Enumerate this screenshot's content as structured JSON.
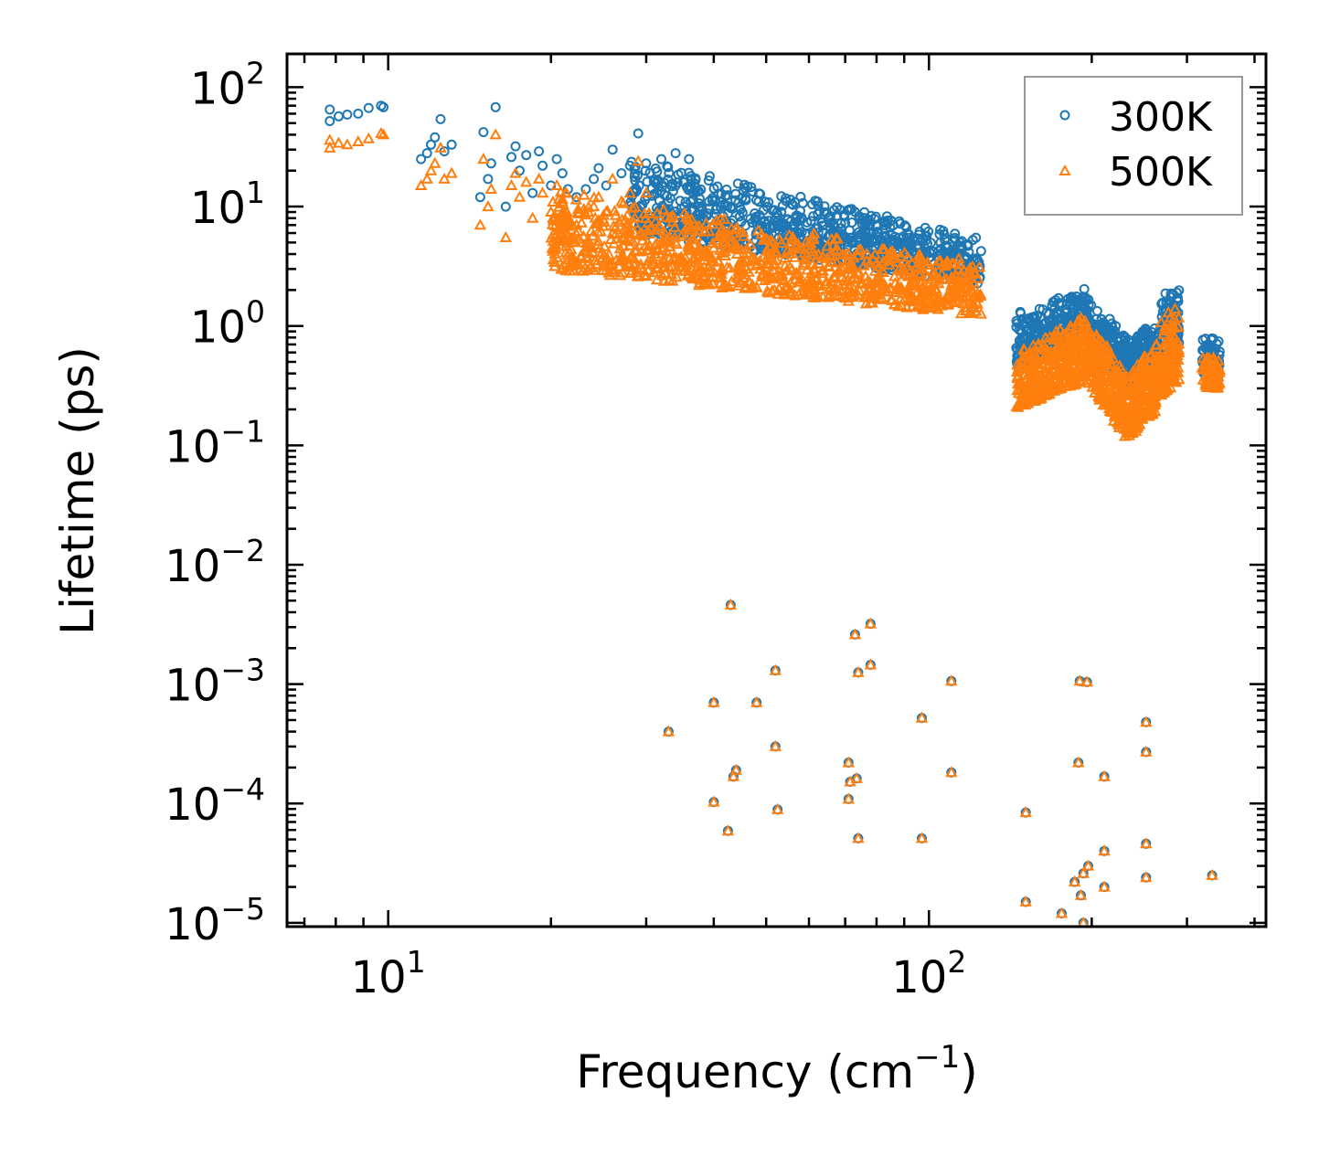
{
  "chart_data": {
    "type": "scatter",
    "xscale": "log",
    "yscale": "log",
    "xlabel": "Frequency (cm",
    "xlabel_sup": "−1",
    "xlabel_end": ")",
    "ylabel": "Lifetime (ps)",
    "xlim": [
      6.5,
      420
    ],
    "ylim": [
      9.3e-06,
      190
    ],
    "xticks": [
      {
        "value": 10,
        "base": "10",
        "exp": "1"
      },
      {
        "value": 100,
        "base": "10",
        "exp": "2"
      }
    ],
    "yticks": [
      {
        "value": 100,
        "base": "10",
        "exp": "2"
      },
      {
        "value": 10,
        "base": "10",
        "exp": "1"
      },
      {
        "value": 1,
        "base": "10",
        "exp": "0"
      },
      {
        "value": 0.1,
        "base": "10",
        "exp": "−1"
      },
      {
        "value": 0.01,
        "base": "10",
        "exp": "−2"
      },
      {
        "value": 0.001,
        "base": "10",
        "exp": "−3"
      },
      {
        "value": 0.0001,
        "base": "10",
        "exp": "−4"
      },
      {
        "value": 1e-05,
        "base": "10",
        "exp": "−5"
      }
    ],
    "legend": {
      "position": "top-right",
      "entries": [
        "300K",
        "500K"
      ]
    },
    "colors": {
      "300K": "#1f77b4",
      "500K": "#ff7f0e"
    },
    "series": [
      {
        "name": "300K",
        "marker": "circle",
        "points": [
          [
            7.8,
            65
          ],
          [
            7.8,
            52
          ],
          [
            8.1,
            57
          ],
          [
            8.4,
            59
          ],
          [
            8.8,
            60
          ],
          [
            9.2,
            67
          ],
          [
            9.7,
            70
          ],
          [
            9.8,
            68
          ],
          [
            11.5,
            25
          ],
          [
            11.8,
            28
          ],
          [
            12.0,
            33
          ],
          [
            12.2,
            38
          ],
          [
            12.5,
            54
          ],
          [
            12.7,
            29
          ],
          [
            13.1,
            33
          ],
          [
            14.8,
            12
          ],
          [
            15.0,
            42
          ],
          [
            15.3,
            17
          ],
          [
            15.5,
            23
          ],
          [
            15.8,
            68
          ],
          [
            16.5,
            10
          ],
          [
            16.9,
            26
          ],
          [
            17.2,
            32
          ],
          [
            17.5,
            20
          ],
          [
            18.0,
            27
          ],
          [
            18.5,
            13
          ],
          [
            19.0,
            29
          ],
          [
            19.3,
            22
          ],
          [
            20.0,
            15
          ],
          [
            20.5,
            25
          ],
          [
            21.0,
            19
          ],
          [
            21.5,
            14
          ],
          [
            22.3,
            12
          ],
          [
            23.2,
            14
          ],
          [
            24.0,
            17
          ],
          [
            24.5,
            21
          ],
          [
            25.3,
            15
          ],
          [
            26.0,
            30
          ],
          [
            27.0,
            19
          ],
          [
            28.0,
            22
          ],
          [
            29.0,
            41
          ],
          [
            30.0,
            23
          ],
          [
            32.0,
            25
          ],
          [
            34.0,
            28
          ],
          [
            36.0,
            25
          ],
          [
            43.0,
            0.0046
          ],
          [
            78.0,
            0.0032
          ],
          [
            73.0,
            0.0026
          ],
          [
            52.0,
            0.0013
          ],
          [
            74.0,
            0.00125
          ],
          [
            78.0,
            0.00145
          ],
          [
            110.0,
            0.00106
          ],
          [
            190.0,
            0.00106
          ],
          [
            196.0,
            0.00104
          ],
          [
            40.0,
            0.0007
          ],
          [
            48.0,
            0.0007
          ],
          [
            97.0,
            0.00052
          ],
          [
            33.0,
            0.0004
          ],
          [
            252.0,
            0.00048
          ],
          [
            52.0,
            0.0003
          ],
          [
            252.0,
            0.00027
          ],
          [
            71.0,
            0.00022
          ],
          [
            189.0,
            0.00022
          ],
          [
            44.0,
            0.00019
          ],
          [
            43.5,
            0.000168
          ],
          [
            71.5,
            0.000152
          ],
          [
            73.5,
            0.000162
          ],
          [
            110.0,
            0.000182
          ],
          [
            211.0,
            0.000168
          ],
          [
            40.0,
            0.000103
          ],
          [
            71.0,
            0.000109
          ],
          [
            52.5,
            8.9e-05
          ],
          [
            151.0,
            8.4e-05
          ],
          [
            42.5,
            5.9e-05
          ],
          [
            74.0,
            5.1e-05
          ],
          [
            97.0,
            5.1e-05
          ],
          [
            252.0,
            4.6e-05
          ],
          [
            211.0,
            4e-05
          ],
          [
            197.0,
            3e-05
          ],
          [
            193.0,
            2.6e-05
          ],
          [
            186.0,
            2.2e-05
          ],
          [
            252.0,
            2.4e-05
          ],
          [
            334.0,
            2.5e-05
          ],
          [
            211.0,
            2e-05
          ],
          [
            191.0,
            1.7e-05
          ],
          [
            151.0,
            1.5e-05
          ],
          [
            176.0,
            1.2e-05
          ],
          [
            193.0,
            1e-05
          ]
        ],
        "clusters": [
          {
            "x": [
              28,
              125
            ],
            "y": [
              [
                6,
                26
              ],
              [
                2.2,
                5.5
              ]
            ],
            "n": 900
          },
          {
            "x": [
              145,
              195
            ],
            "y": [
              [
                0.4,
                1.3
              ],
              [
                0.8,
                2.1
              ]
            ],
            "n": 320
          },
          {
            "x": [
              195,
              232
            ],
            "y": [
              [
                0.8,
                2.0
              ],
              [
                0.25,
                0.8
              ]
            ],
            "n": 240
          },
          {
            "x": [
              232,
              265
            ],
            "y": [
              [
                0.25,
                0.8
              ],
              [
                0.5,
                1.1
              ]
            ],
            "n": 200
          },
          {
            "x": [
              268,
              290
            ],
            "y": [
              [
                0.4,
                1.8
              ],
              [
                0.6,
                2.4
              ]
            ],
            "n": 120
          },
          {
            "x": [
              320,
              345
            ],
            "y": [
              [
                0.4,
                0.9
              ],
              [
                0.35,
                0.8
              ]
            ],
            "n": 80
          }
        ]
      },
      {
        "name": "500K",
        "marker": "triangle",
        "points": [
          [
            7.8,
            36
          ],
          [
            7.8,
            31
          ],
          [
            8.1,
            34
          ],
          [
            8.4,
            33
          ],
          [
            8.8,
            35
          ],
          [
            9.2,
            37
          ],
          [
            9.7,
            41
          ],
          [
            9.8,
            40
          ],
          [
            11.5,
            15
          ],
          [
            11.8,
            17
          ],
          [
            12.0,
            20
          ],
          [
            12.2,
            23
          ],
          [
            12.5,
            31
          ],
          [
            12.7,
            17
          ],
          [
            13.1,
            19
          ],
          [
            14.8,
            7
          ],
          [
            15.0,
            25
          ],
          [
            15.3,
            10
          ],
          [
            15.5,
            14
          ],
          [
            15.8,
            40
          ],
          [
            16.5,
            5.5
          ],
          [
            16.9,
            15
          ],
          [
            17.2,
            19
          ],
          [
            17.5,
            12
          ],
          [
            18.0,
            16
          ],
          [
            18.5,
            8
          ],
          [
            19.0,
            17
          ],
          [
            19.3,
            13
          ],
          [
            20.0,
            9
          ],
          [
            20.5,
            15
          ],
          [
            21.0,
            11
          ],
          [
            21.5,
            8
          ],
          [
            22.3,
            7
          ],
          [
            23.2,
            8.5
          ],
          [
            24.0,
            10
          ],
          [
            24.5,
            12
          ],
          [
            25.3,
            9
          ],
          [
            26.0,
            17
          ],
          [
            27.0,
            11
          ],
          [
            28.0,
            13
          ],
          [
            29.0,
            24
          ],
          [
            30.0,
            13
          ],
          [
            43.0,
            0.0046
          ],
          [
            78.0,
            0.0032
          ],
          [
            73.0,
            0.0026
          ],
          [
            52.0,
            0.0013
          ],
          [
            74.0,
            0.00125
          ],
          [
            78.0,
            0.00145
          ],
          [
            110.0,
            0.00106
          ],
          [
            190.0,
            0.00106
          ],
          [
            196.0,
            0.00104
          ],
          [
            40.0,
            0.0007
          ],
          [
            48.0,
            0.0007
          ],
          [
            97.0,
            0.00052
          ],
          [
            33.0,
            0.0004
          ],
          [
            252.0,
            0.00048
          ],
          [
            52.0,
            0.0003
          ],
          [
            252.0,
            0.00027
          ],
          [
            71.0,
            0.00022
          ],
          [
            189.0,
            0.00022
          ],
          [
            44.0,
            0.00019
          ],
          [
            43.5,
            0.000168
          ],
          [
            71.5,
            0.000152
          ],
          [
            73.5,
            0.000162
          ],
          [
            110.0,
            0.000182
          ],
          [
            211.0,
            0.000168
          ],
          [
            40.0,
            0.000103
          ],
          [
            71.0,
            0.000109
          ],
          [
            52.5,
            8.9e-05
          ],
          [
            151.0,
            8.4e-05
          ],
          [
            42.5,
            5.9e-05
          ],
          [
            74.0,
            5.1e-05
          ],
          [
            97.0,
            5.1e-05
          ],
          [
            252.0,
            4.6e-05
          ],
          [
            211.0,
            4e-05
          ],
          [
            197.0,
            3e-05
          ],
          [
            193.0,
            2.6e-05
          ],
          [
            186.0,
            2.2e-05
          ],
          [
            252.0,
            2.4e-05
          ],
          [
            334.0,
            2.5e-05
          ],
          [
            211.0,
            2e-05
          ],
          [
            191.0,
            1.7e-05
          ],
          [
            151.0,
            1.5e-05
          ],
          [
            176.0,
            1.2e-05
          ],
          [
            193.0,
            1e-05
          ]
        ],
        "clusters": [
          {
            "x": [
              20,
              125
            ],
            "y": [
              [
                3,
                14
              ],
              [
                1.2,
                3.5
              ]
            ],
            "n": 1000
          },
          {
            "x": [
              145,
              195
            ],
            "y": [
              [
                0.2,
                0.6
              ],
              [
                0.35,
                1.3
              ]
            ],
            "n": 340
          },
          {
            "x": [
              195,
              232
            ],
            "y": [
              [
                0.35,
                1.3
              ],
              [
                0.11,
                0.4
              ]
            ],
            "n": 260
          },
          {
            "x": [
              232,
              265
            ],
            "y": [
              [
                0.11,
                0.4
              ],
              [
                0.2,
                0.8
              ]
            ],
            "n": 220
          },
          {
            "x": [
              268,
              290
            ],
            "y": [
              [
                0.25,
                1.2
              ],
              [
                0.35,
                1.8
              ]
            ],
            "n": 120
          },
          {
            "x": [
              320,
              345
            ],
            "y": [
              [
                0.3,
                0.6
              ],
              [
                0.3,
                0.55
              ]
            ],
            "n": 80
          }
        ]
      }
    ]
  }
}
